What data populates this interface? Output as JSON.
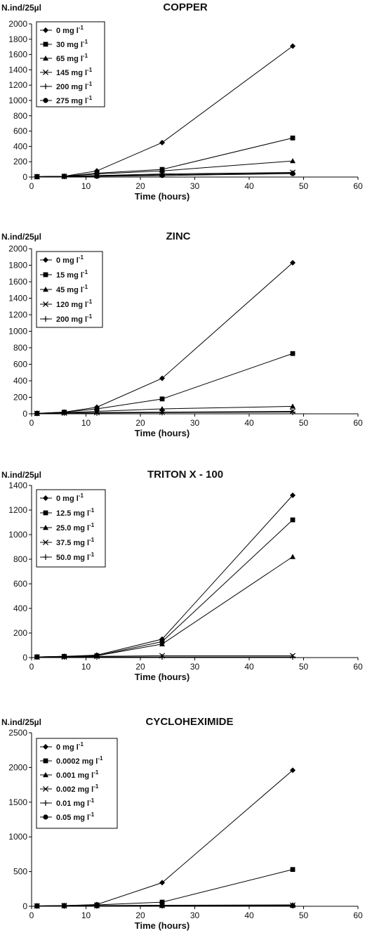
{
  "chart_data": [
    {
      "type": "line",
      "title": "COPPER",
      "ylabel": "N.ind/25µl",
      "xlabel": "Time (hours)",
      "x": [
        1,
        6,
        12,
        24,
        48
      ],
      "xlim": [
        0,
        60
      ],
      "xticks": [
        0,
        10,
        20,
        30,
        40,
        50,
        60
      ],
      "ylim": [
        0,
        2000
      ],
      "yticks": [
        0,
        200,
        400,
        600,
        800,
        1000,
        1200,
        1400,
        1600,
        1800,
        2000
      ],
      "legend_position": "top-left",
      "series": [
        {
          "name": "0 mg l",
          "sup": "-1",
          "marker": "diamond",
          "values": [
            5,
            10,
            80,
            450,
            1710
          ]
        },
        {
          "name": "30 mg l",
          "sup": "-1",
          "marker": "square",
          "values": [
            5,
            10,
            50,
            100,
            510
          ]
        },
        {
          "name": "65 mg l",
          "sup": "-1",
          "marker": "triangle",
          "values": [
            5,
            10,
            40,
            80,
            210
          ]
        },
        {
          "name": "145 mg l",
          "sup": "-1",
          "marker": "star",
          "values": [
            5,
            8,
            20,
            40,
            60
          ]
        },
        {
          "name": "200 mg l",
          "sup": "-1",
          "marker": "plus",
          "values": [
            5,
            8,
            15,
            30,
            50
          ]
        },
        {
          "name": "275 mg l",
          "sup": "-1",
          "marker": "circle",
          "values": [
            5,
            8,
            10,
            20,
            45
          ]
        }
      ]
    },
    {
      "type": "line",
      "title": "ZINC",
      "ylabel": "N.ind/25µl",
      "xlabel": "Time (hours)",
      "x": [
        1,
        6,
        12,
        24,
        48
      ],
      "xlim": [
        0,
        60
      ],
      "xticks": [
        0,
        10,
        20,
        30,
        40,
        50,
        60
      ],
      "ylim": [
        0,
        2000
      ],
      "yticks": [
        0,
        200,
        400,
        600,
        800,
        1000,
        1200,
        1400,
        1600,
        1800,
        2000
      ],
      "legend_position": "top-left",
      "series": [
        {
          "name": "0 mg l",
          "sup": "-1",
          "marker": "diamond",
          "values": [
            5,
            20,
            80,
            430,
            1830
          ]
        },
        {
          "name": "15 mg l",
          "sup": "-1",
          "marker": "square",
          "values": [
            5,
            20,
            60,
            180,
            730
          ]
        },
        {
          "name": "45 mg l",
          "sup": "-1",
          "marker": "triangle",
          "values": [
            5,
            15,
            30,
            60,
            90
          ]
        },
        {
          "name": "120 mg l",
          "sup": "-1",
          "marker": "star",
          "values": [
            5,
            10,
            15,
            20,
            30
          ]
        },
        {
          "name": "200 mg l",
          "sup": "-1",
          "marker": "plus",
          "values": [
            5,
            10,
            10,
            15,
            20
          ]
        }
      ]
    },
    {
      "type": "line",
      "title": "TRITON X - 100",
      "ylabel": "N.ind/25µl",
      "xlabel": "Time (hours)",
      "x": [
        1,
        6,
        12,
        24,
        48
      ],
      "xlim": [
        0,
        60
      ],
      "xticks": [
        0,
        10,
        20,
        30,
        40,
        50,
        60
      ],
      "ylim": [
        0,
        1400
      ],
      "yticks": [
        0,
        200,
        400,
        600,
        800,
        1000,
        1200,
        1400
      ],
      "legend_position": "top-left",
      "series": [
        {
          "name": "0 mg l",
          "sup": "-1",
          "marker": "diamond",
          "values": [
            5,
            10,
            20,
            150,
            1320
          ]
        },
        {
          "name": "12.5 mg l",
          "sup": "-1",
          "marker": "square",
          "values": [
            5,
            10,
            15,
            130,
            1120
          ]
        },
        {
          "name": "25.0 mg l",
          "sup": "-1",
          "marker": "triangle",
          "values": [
            5,
            10,
            15,
            110,
            820
          ]
        },
        {
          "name": "37.5 mg l",
          "sup": "-1",
          "marker": "star",
          "values": [
            5,
            5,
            10,
            15,
            15
          ]
        },
        {
          "name": "50.0 mg l",
          "sup": "-1",
          "marker": "plus",
          "values": [
            5,
            5,
            5,
            5,
            5
          ]
        }
      ]
    },
    {
      "type": "line",
      "title": "CYCLOHEXIMIDE",
      "ylabel": "N.ind/25µl",
      "xlabel": "Time (hours)",
      "x": [
        1,
        6,
        12,
        24,
        48
      ],
      "xlim": [
        0,
        60
      ],
      "xticks": [
        0,
        10,
        20,
        30,
        40,
        50,
        60
      ],
      "ylim": [
        0,
        2500
      ],
      "yticks": [
        0,
        500,
        1000,
        1500,
        2000,
        2500
      ],
      "legend_position": "top-left",
      "series": [
        {
          "name": "0 mg l",
          "sup": "-1",
          "marker": "diamond",
          "values": [
            5,
            10,
            25,
            340,
            1960
          ]
        },
        {
          "name": "0.0002 mg l",
          "sup": "-1",
          "marker": "square",
          "values": [
            5,
            10,
            20,
            60,
            530
          ]
        },
        {
          "name": "0.001 mg l",
          "sup": "-1",
          "marker": "triangle",
          "values": [
            5,
            8,
            10,
            15,
            20
          ]
        },
        {
          "name": "0.002 mg l",
          "sup": "-1",
          "marker": "star",
          "values": [
            5,
            8,
            10,
            12,
            15
          ]
        },
        {
          "name": "0.01 mg l",
          "sup": "-1",
          "marker": "plus",
          "values": [
            5,
            5,
            8,
            10,
            10
          ]
        },
        {
          "name": "0.05 mg l",
          "sup": "-1",
          "marker": "circle",
          "values": [
            5,
            5,
            5,
            8,
            8
          ]
        }
      ]
    }
  ]
}
